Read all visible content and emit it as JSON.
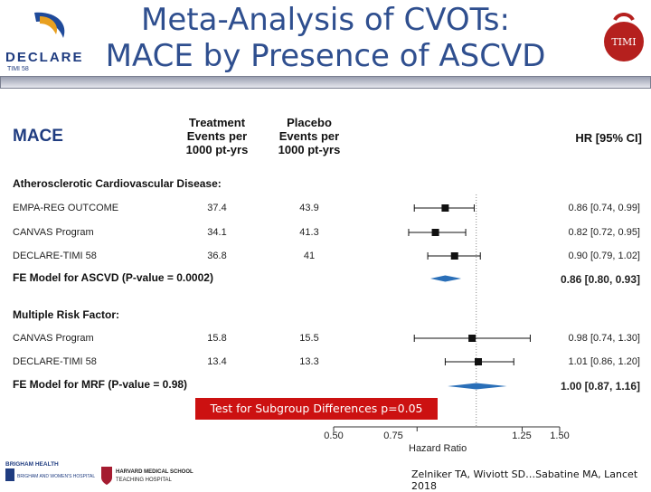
{
  "title_line1": "Meta-Analysis of CVOTs:",
  "title_line2": "MACE by Presence of ASCVD",
  "logos": {
    "left": "DECLARE",
    "left_sub": "TIMI 58",
    "right": "TIMI",
    "bottom_left_1": "BRIGHAM HEALTH",
    "bottom_left_2": "BRIGHAM AND WOMEN'S HOSPITAL",
    "bottom_right_1": "HARVARD MEDICAL SCHOOL",
    "bottom_right_2": "TEACHING HOSPITAL"
  },
  "headers": {
    "outcome": "MACE",
    "treatment_1": "Treatment",
    "treatment_2": "Events per",
    "treatment_3": "1000 pt-yrs",
    "placebo_1": "Placebo",
    "placebo_2": "Events per",
    "placebo_3": "1000 pt-yrs",
    "hr": "HR [95% CI]"
  },
  "chart_data": {
    "type": "forest",
    "xlabel": "Hazard Ratio",
    "xticks": [
      "0.50",
      "0.75",
      "1.25",
      "1.50"
    ],
    "reference_line": 1.0,
    "groups": [
      {
        "label": "Atherosclerotic Cardiovascular Disease:",
        "studies": [
          {
            "name": "EMPA-REG OUTCOME",
            "treatment": "37.4",
            "placebo": "43.9",
            "hr": 0.86,
            "lo": 0.74,
            "hi": 0.99,
            "hr_text": "0.86 [0.74, 0.99]"
          },
          {
            "name": "CANVAS Program",
            "treatment": "34.1",
            "placebo": "41.3",
            "hr": 0.82,
            "lo": 0.72,
            "hi": 0.95,
            "hr_text": "0.82 [0.72, 0.95]"
          },
          {
            "name": "DECLARE-TIMI 58",
            "treatment": "36.8",
            "placebo": "41",
            "hr": 0.9,
            "lo": 0.79,
            "hi": 1.02,
            "hr_text": "0.90 [0.79, 1.02]"
          }
        ],
        "pooled": {
          "name": "FE Model for ASCVD (P-value = 0.0002)",
          "hr": 0.86,
          "lo": 0.8,
          "hi": 0.93,
          "hr_text": "0.86 [0.80, 0.93]"
        }
      },
      {
        "label": "Multiple Risk Factor:",
        "studies": [
          {
            "name": "CANVAS Program",
            "treatment": "15.8",
            "placebo": "15.5",
            "hr": 0.98,
            "lo": 0.74,
            "hi": 1.3,
            "hr_text": "0.98 [0.74, 1.30]"
          },
          {
            "name": "DECLARE-TIMI 58",
            "treatment": "13.4",
            "placebo": "13.3",
            "hr": 1.01,
            "lo": 0.86,
            "hi": 1.2,
            "hr_text": "1.01 [0.86, 1.20]"
          }
        ],
        "pooled": {
          "name": "FE Model for MRF (P-value = 0.98)",
          "hr": 1.0,
          "lo": 0.87,
          "hi": 1.16,
          "hr_text": "1.00 [0.87, 1.16]"
        }
      }
    ],
    "annotation": "Test for Subgroup Differences p=0.05"
  },
  "citation": "Zelniker TA, Wiviott SD…Sabatine MA, Lancet 2018",
  "colors": {
    "title": "#2f4f8f",
    "pooled": "#2a6fb8",
    "annotation_bg": "#cc1111"
  }
}
